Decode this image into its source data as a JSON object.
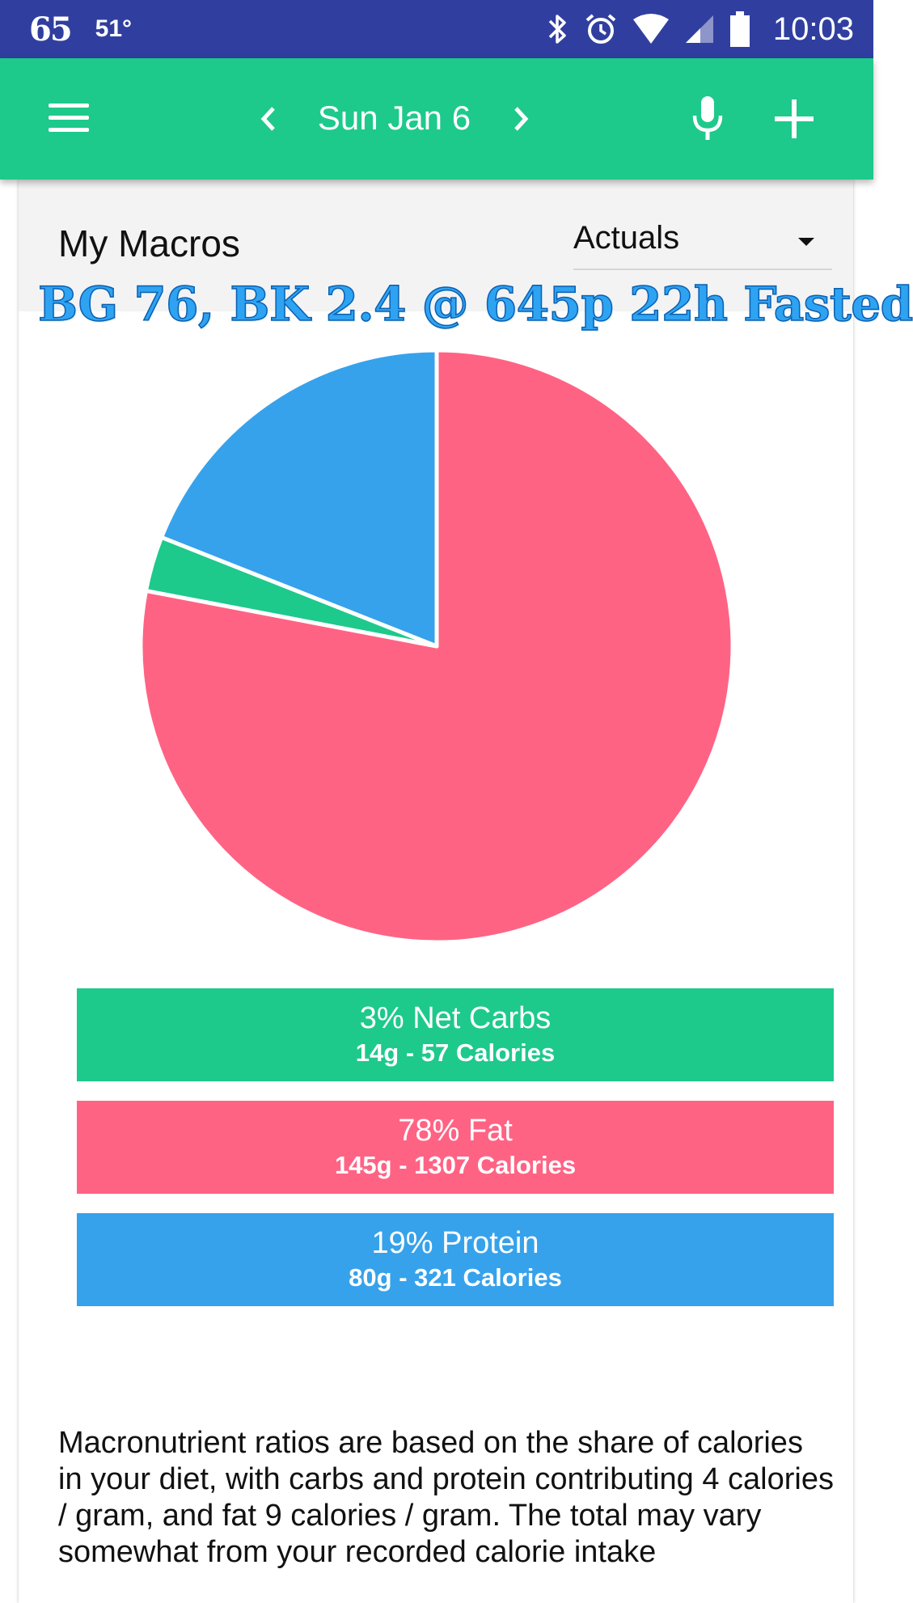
{
  "status_bar": {
    "app_badge": "65",
    "temperature": "51°",
    "time": "10:03"
  },
  "app_bar": {
    "date": "Sun Jan 6"
  },
  "card": {
    "title": "My Macros",
    "view_select": "Actuals"
  },
  "overlay": "BG 76, BK 2.4 @ 645p 22h Fasted",
  "colors": {
    "net_carbs": "#1ec98c",
    "fat": "#ff6384",
    "protein": "#36a2eb",
    "app_bar": "#1ec98c",
    "status_bar": "#303f9f"
  },
  "chart_data": {
    "type": "pie",
    "slices": [
      {
        "label": "Net Carbs",
        "value": 3,
        "grams": 14,
        "calories": 57,
        "color": "#1ec98c"
      },
      {
        "label": "Fat",
        "value": 78,
        "grams": 145,
        "calories": 1307,
        "color": "#ff6384"
      },
      {
        "label": "Protein",
        "value": 19,
        "grams": 80,
        "calories": 321,
        "color": "#36a2eb"
      }
    ]
  },
  "legend": [
    {
      "main": "3% Net Carbs",
      "sub": "14g - 57 Calories"
    },
    {
      "main": "78% Fat",
      "sub": "145g - 1307 Calories"
    },
    {
      "main": "19% Protein",
      "sub": "80g - 321 Calories"
    }
  ],
  "description": "Macronutrient ratios are based on the share of calories in your diet, with carbs and protein contributing 4 calories / gram, and fat 9 calories / gram. The total may vary somewhat from your recorded calorie intake"
}
